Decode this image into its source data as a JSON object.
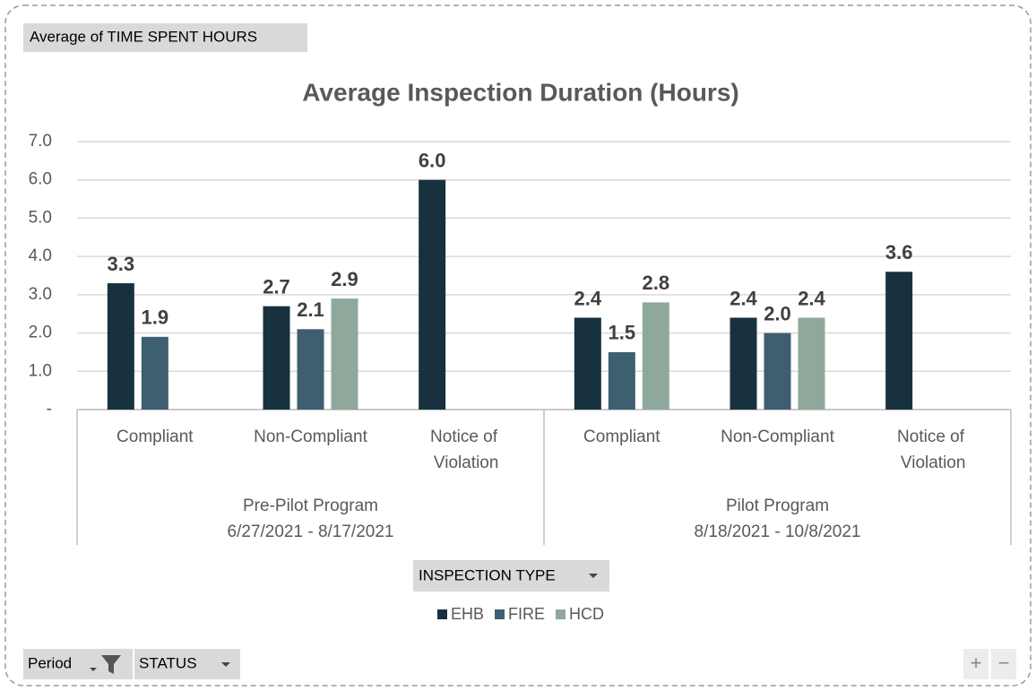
{
  "buttons": {
    "values_field": "Average of TIME SPENT HOURS",
    "legend_field": "INSPECTION TYPE",
    "filters": [
      "Period",
      "STATUS"
    ],
    "zoom": [
      "+",
      "−"
    ]
  },
  "chart_data": {
    "type": "bar",
    "title": "Average Inspection Duration (Hours)",
    "groups": [
      {
        "label": [
          "Pre-Pilot Program",
          "6/27/2021 - 8/17/2021"
        ],
        "categories": [
          "Compliant",
          "Non-Compliant",
          "Notice of Violation"
        ]
      },
      {
        "label": [
          "Pilot Program",
          "8/18/2021 - 10/8/2021"
        ],
        "categories": [
          "Compliant",
          "Non-Compliant",
          "Notice of Violation"
        ]
      }
    ],
    "series": [
      {
        "name": "EHB",
        "color": "#17313f",
        "values": [
          3.3,
          2.7,
          6.0,
          2.4,
          2.4,
          3.6
        ],
        "value_labels": [
          "3.3",
          "2.7",
          "6.0",
          "2.4",
          "2.4",
          "3.6"
        ]
      },
      {
        "name": "FIRE",
        "color": "#3e5f6f",
        "values": [
          1.9,
          2.1,
          null,
          1.5,
          2.0,
          null
        ],
        "value_labels": [
          "1.9",
          "2.1",
          null,
          "1.5",
          "2.0",
          null
        ]
      },
      {
        "name": "HCD",
        "color": "#8fa89c",
        "values": [
          null,
          2.9,
          null,
          2.8,
          2.4,
          null
        ],
        "value_labels": [
          null,
          "2.9",
          null,
          "2.8",
          "2.4",
          null
        ]
      }
    ],
    "ylim": [
      0,
      7
    ],
    "yticks": [
      {
        "value": 0,
        "label": "-"
      },
      {
        "value": 1,
        "label": "1.0"
      },
      {
        "value": 2,
        "label": "2.0"
      },
      {
        "value": 3,
        "label": "3.0"
      },
      {
        "value": 4,
        "label": "4.0"
      },
      {
        "value": 5,
        "label": "5.0"
      },
      {
        "value": 6,
        "label": "6.0"
      },
      {
        "value": 7,
        "label": "7.0"
      }
    ],
    "grid": true
  }
}
